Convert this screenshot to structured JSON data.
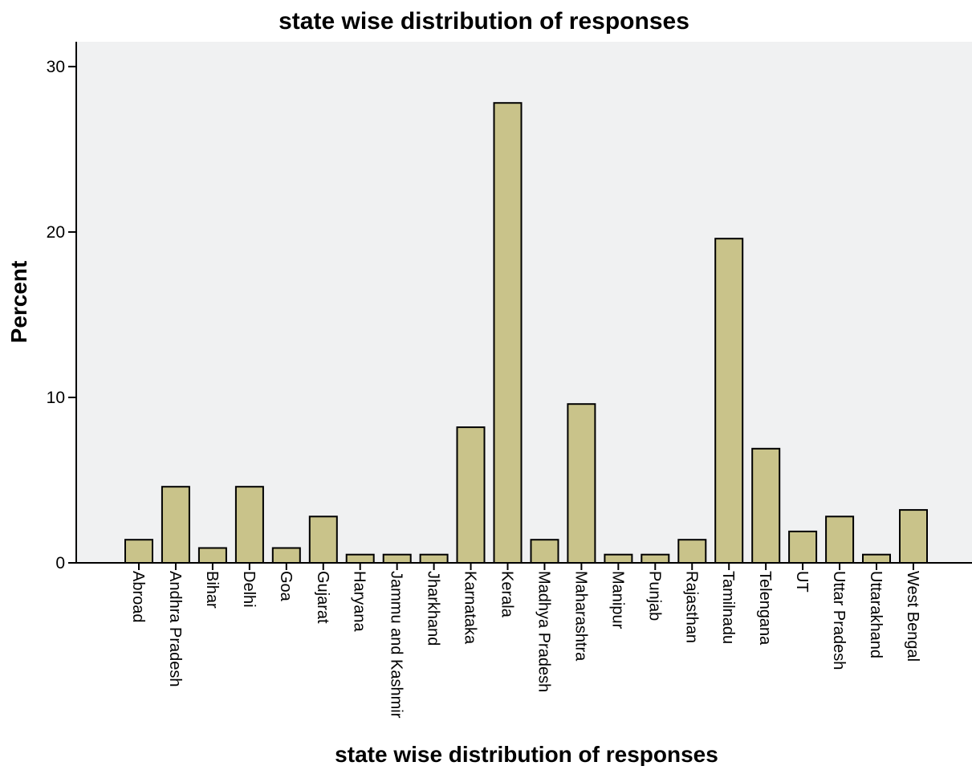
{
  "chart_data": {
    "type": "bar",
    "title": "state wise distribution of responses",
    "xlabel": "state wise distribution of responses",
    "ylabel": "Percent",
    "ylim": [
      0,
      31.5
    ],
    "yticks": [
      0,
      10,
      20,
      30
    ],
    "grid": false,
    "legend": "none",
    "colors": {
      "bar_fill": "#c9c38a",
      "bar_stroke": "#000000",
      "plot_bg": "#f0f1f2"
    },
    "categories": [
      "Abroad",
      "Andhra Pradesh",
      "Bihar",
      "Delhi",
      "Goa",
      "Gujarat",
      "Haryana",
      "Jammu and Kashmir",
      "Jharkhand",
      "Karnataka",
      "Kerala",
      "Madhya Pradesh",
      "Maharashtra",
      "Manipur",
      "Punjab",
      "Rajasthan",
      "Tamilnadu",
      "Telengana",
      "UT",
      "Uttar Pradesh",
      "Uttarakhand",
      "West Bengal"
    ],
    "values": [
      1.4,
      4.6,
      0.9,
      4.6,
      0.9,
      2.8,
      0.5,
      0.5,
      0.5,
      8.2,
      27.8,
      1.4,
      9.6,
      0.5,
      0.5,
      1.4,
      19.6,
      6.9,
      1.9,
      2.8,
      0.5,
      3.2
    ]
  }
}
